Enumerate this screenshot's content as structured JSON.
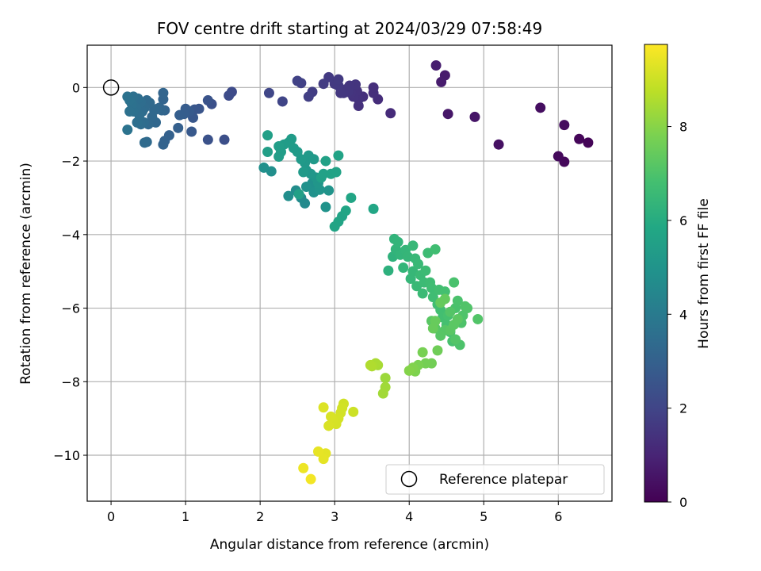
{
  "chart_data": {
    "type": "scatter",
    "title": "FOV centre drift starting at 2024/03/29 07:58:49",
    "xlabel": "Angular distance from reference (arcmin)",
    "ylabel": "Rotation from reference (arcmin)",
    "xlim": [
      -0.32,
      6.72
    ],
    "ylim": [
      -11.25,
      1.15
    ],
    "xticks": [
      0,
      1,
      2,
      3,
      4,
      5,
      6
    ],
    "yticks": [
      0,
      -2,
      -4,
      -6,
      -8,
      -10
    ],
    "xtick_labels": [
      "0",
      "1",
      "2",
      "3",
      "4",
      "5",
      "6"
    ],
    "ytick_labels": [
      "0",
      "−2",
      "−4",
      "−6",
      "−8",
      "−10"
    ],
    "grid": true,
    "colormap": "viridis",
    "colorbar": {
      "label": "Hours from first FF file",
      "range": [
        0,
        9.75
      ],
      "ticks": [
        0,
        2,
        4,
        6,
        8
      ],
      "tick_labels": [
        "0",
        "2",
        "4",
        "6",
        "8"
      ]
    },
    "legend": {
      "position": "lower-right",
      "entries": [
        {
          "label": "Reference platepar",
          "marker": "open-circle"
        }
      ]
    },
    "reference_point": {
      "x": 0,
      "y": 0
    },
    "series": [
      {
        "points": [
          [
            6.4,
            -1.5,
            0.1
          ],
          [
            6.28,
            -1.4,
            0.15
          ],
          [
            6.08,
            -2.02,
            0.2
          ],
          [
            6.0,
            -1.87,
            0.25
          ],
          [
            6.08,
            -1.02,
            0.3
          ],
          [
            5.76,
            -0.55,
            0.35
          ],
          [
            5.2,
            -1.55,
            0.45
          ],
          [
            4.88,
            -0.8,
            0.55
          ],
          [
            4.52,
            -0.72,
            0.6
          ],
          [
            4.48,
            0.33,
            0.7
          ],
          [
            4.43,
            0.15,
            0.75
          ],
          [
            4.36,
            0.6,
            0.8
          ],
          [
            3.75,
            -0.7,
            1.2
          ],
          [
            3.58,
            -0.32,
            1.25
          ],
          [
            3.52,
            -0.15,
            1.3
          ],
          [
            3.52,
            0.0,
            1.32
          ],
          [
            3.38,
            -0.25,
            1.35
          ],
          [
            3.32,
            -0.5,
            1.38
          ],
          [
            3.32,
            -0.32,
            1.4
          ],
          [
            3.3,
            -0.1,
            1.42
          ],
          [
            3.25,
            -0.25,
            1.44
          ],
          [
            3.22,
            -0.15,
            1.46
          ],
          [
            3.28,
            0.08,
            1.48
          ],
          [
            3.2,
            0.05,
            1.5
          ],
          [
            3.18,
            -0.12,
            1.52
          ],
          [
            3.15,
            -0.05,
            1.54
          ],
          [
            3.12,
            -0.15,
            1.56
          ],
          [
            3.08,
            -0.15,
            1.58
          ],
          [
            3.05,
            0.05,
            1.6
          ],
          [
            3.0,
            0.1,
            1.62
          ],
          [
            3.05,
            0.22,
            1.64
          ],
          [
            2.92,
            0.28,
            1.66
          ],
          [
            2.85,
            0.1,
            1.7
          ],
          [
            2.7,
            -0.12,
            1.75
          ],
          [
            2.65,
            -0.25,
            1.8
          ],
          [
            2.55,
            0.12,
            1.85
          ],
          [
            2.5,
            0.18,
            1.9
          ],
          [
            2.3,
            -0.38,
            2.0
          ],
          [
            2.12,
            -0.15,
            2.05
          ],
          [
            1.62,
            -0.12,
            2.2
          ],
          [
            1.58,
            -0.22,
            2.25
          ],
          [
            1.52,
            -1.42,
            2.35
          ],
          [
            1.35,
            -0.45,
            2.4
          ],
          [
            1.3,
            -1.42,
            2.45
          ],
          [
            1.3,
            -0.35,
            2.5
          ],
          [
            1.18,
            -0.58,
            2.55
          ],
          [
            1.12,
            -0.6,
            2.6
          ],
          [
            1.1,
            -0.82,
            2.65
          ],
          [
            1.08,
            -1.2,
            2.7
          ],
          [
            1.05,
            -0.65,
            2.75
          ],
          [
            1.0,
            -0.58,
            2.8
          ],
          [
            0.98,
            -0.72,
            2.85
          ],
          [
            0.92,
            -0.75,
            2.9
          ],
          [
            0.9,
            -1.1,
            2.95
          ],
          [
            0.78,
            -1.3,
            3.0
          ],
          [
            0.72,
            -1.45,
            3.05
          ],
          [
            0.7,
            -1.55,
            3.08
          ],
          [
            0.72,
            -0.62,
            3.1
          ],
          [
            0.7,
            -0.32,
            3.12
          ],
          [
            0.7,
            -0.15,
            3.14
          ],
          [
            0.68,
            -0.62,
            3.18
          ],
          [
            0.65,
            -0.55,
            3.2
          ],
          [
            0.62,
            -0.58,
            3.22
          ],
          [
            0.6,
            -0.95,
            3.24
          ],
          [
            0.58,
            -0.62,
            3.26
          ],
          [
            0.55,
            -0.8,
            3.28
          ],
          [
            0.52,
            -0.42,
            3.3
          ],
          [
            0.5,
            -1.0,
            3.32
          ],
          [
            0.48,
            -0.35,
            3.34
          ],
          [
            0.48,
            -1.48,
            3.36
          ],
          [
            0.45,
            -0.55,
            3.38
          ],
          [
            0.45,
            -1.5,
            3.4
          ],
          [
            0.44,
            -0.95,
            3.42
          ],
          [
            0.42,
            -0.65,
            3.44
          ],
          [
            0.4,
            -0.4,
            3.46
          ],
          [
            0.4,
            -1.0,
            3.48
          ],
          [
            0.38,
            -0.75,
            3.5
          ],
          [
            0.36,
            -0.3,
            3.52
          ],
          [
            0.35,
            -0.95,
            3.54
          ],
          [
            0.33,
            -0.55,
            3.56
          ],
          [
            0.3,
            -0.25,
            3.58
          ],
          [
            0.3,
            -0.65,
            3.6
          ],
          [
            0.28,
            -0.45,
            3.62
          ],
          [
            0.25,
            -0.65,
            3.64
          ],
          [
            0.25,
            -0.35,
            3.66
          ],
          [
            0.22,
            -0.25,
            3.68
          ],
          [
            0.22,
            -1.15,
            3.7
          ],
          [
            2.6,
            -3.15,
            4.6
          ],
          [
            2.55,
            -3.0,
            4.65
          ],
          [
            2.48,
            -2.8,
            4.7
          ],
          [
            2.38,
            -2.95,
            4.75
          ],
          [
            2.15,
            -2.28,
            4.8
          ],
          [
            2.05,
            -2.18,
            4.82
          ],
          [
            2.7,
            -2.6,
            4.85
          ],
          [
            2.62,
            -2.7,
            4.9
          ],
          [
            2.72,
            -2.85,
            4.92
          ],
          [
            2.88,
            -3.25,
            4.95
          ],
          [
            2.92,
            -2.8,
            5.0
          ],
          [
            2.8,
            -2.78,
            5.05
          ],
          [
            2.78,
            -2.6,
            5.08
          ],
          [
            2.75,
            -2.45,
            5.1
          ],
          [
            2.68,
            -2.35,
            5.12
          ],
          [
            2.62,
            -2.25,
            5.15
          ],
          [
            2.6,
            -2.05,
            5.18
          ],
          [
            2.65,
            -1.85,
            5.2
          ],
          [
            2.72,
            -1.95,
            5.22
          ],
          [
            2.58,
            -2.3,
            5.24
          ],
          [
            2.55,
            -1.95,
            5.26
          ],
          [
            2.5,
            -1.75,
            5.28
          ],
          [
            2.45,
            -1.65,
            5.3
          ],
          [
            2.42,
            -1.4,
            5.32
          ],
          [
            2.38,
            -1.5,
            5.34
          ],
          [
            2.32,
            -1.55,
            5.36
          ],
          [
            2.28,
            -1.75,
            5.38
          ],
          [
            2.25,
            -1.88,
            5.4
          ],
          [
            2.25,
            -1.6,
            5.42
          ],
          [
            2.1,
            -1.75,
            5.44
          ],
          [
            2.1,
            -1.3,
            5.46
          ],
          [
            2.52,
            -2.9,
            5.5
          ],
          [
            2.82,
            -2.45,
            5.52
          ],
          [
            2.85,
            -2.35,
            5.54
          ],
          [
            2.88,
            -2.0,
            5.56
          ],
          [
            2.95,
            -2.35,
            5.58
          ],
          [
            3.02,
            -2.3,
            5.6
          ],
          [
            3.05,
            -1.85,
            5.62
          ],
          [
            3.1,
            -3.5,
            5.65
          ],
          [
            3.05,
            -3.65,
            5.68
          ],
          [
            3.0,
            -3.78,
            5.7
          ],
          [
            3.15,
            -3.35,
            5.72
          ],
          [
            3.22,
            -3.0,
            5.74
          ],
          [
            3.52,
            -3.3,
            5.76
          ],
          [
            3.72,
            -4.98,
            6.2
          ],
          [
            3.78,
            -4.6,
            6.25
          ],
          [
            3.8,
            -4.12,
            6.3
          ],
          [
            3.82,
            -4.4,
            6.32
          ],
          [
            3.85,
            -4.2,
            6.34
          ],
          [
            3.88,
            -4.55,
            6.36
          ],
          [
            3.92,
            -4.9,
            6.38
          ],
          [
            3.95,
            -4.42,
            6.4
          ],
          [
            3.98,
            -4.6,
            6.42
          ],
          [
            4.02,
            -5.2,
            6.44
          ],
          [
            4.05,
            -5.0,
            6.46
          ],
          [
            4.05,
            -4.3,
            6.48
          ],
          [
            4.08,
            -4.65,
            6.5
          ],
          [
            4.1,
            -5.4,
            6.52
          ],
          [
            4.12,
            -4.8,
            6.54
          ],
          [
            4.15,
            -5.1,
            6.56
          ],
          [
            4.18,
            -5.6,
            6.58
          ],
          [
            4.2,
            -5.3,
            6.6
          ],
          [
            4.22,
            -4.98,
            6.62
          ],
          [
            4.25,
            -4.5,
            6.64
          ],
          [
            4.28,
            -5.3,
            6.66
          ],
          [
            4.3,
            -5.45,
            6.68
          ],
          [
            4.32,
            -5.7,
            6.7
          ],
          [
            4.35,
            -4.4,
            6.72
          ],
          [
            4.38,
            -5.9,
            6.74
          ],
          [
            4.4,
            -5.5,
            6.76
          ],
          [
            4.42,
            -6.05,
            6.78
          ],
          [
            4.45,
            -6.25,
            6.8
          ],
          [
            4.48,
            -5.55,
            6.82
          ],
          [
            4.5,
            -6.45,
            6.84
          ],
          [
            4.52,
            -6.2,
            6.86
          ],
          [
            4.55,
            -6.65,
            6.88
          ],
          [
            4.58,
            -6.9,
            6.9
          ],
          [
            4.6,
            -5.3,
            6.92
          ],
          [
            4.62,
            -6.0,
            6.94
          ],
          [
            4.65,
            -5.8,
            6.96
          ],
          [
            4.68,
            -7.0,
            6.98
          ],
          [
            4.7,
            -6.4,
            7.0
          ],
          [
            4.72,
            -6.2,
            7.02
          ],
          [
            4.75,
            -5.95,
            7.04
          ],
          [
            4.78,
            -6.0,
            7.06
          ],
          [
            4.92,
            -6.3,
            7.08
          ],
          [
            4.62,
            -6.85,
            7.1
          ],
          [
            4.55,
            -6.1,
            7.12
          ],
          [
            4.48,
            -6.6,
            7.14
          ],
          [
            4.42,
            -6.75,
            7.16
          ],
          [
            4.35,
            -6.55,
            7.18
          ],
          [
            4.3,
            -6.35,
            7.2
          ],
          [
            4.55,
            -6.6,
            7.22
          ],
          [
            4.6,
            -6.45,
            7.24
          ],
          [
            4.65,
            -6.3,
            7.26
          ],
          [
            4.48,
            -5.75,
            7.4
          ],
          [
            4.42,
            -5.85,
            7.42
          ],
          [
            4.35,
            -6.35,
            7.45
          ],
          [
            4.32,
            -6.55,
            7.48
          ],
          [
            4.38,
            -7.15,
            7.6
          ],
          [
            4.3,
            -7.5,
            7.65
          ],
          [
            4.22,
            -7.5,
            7.7
          ],
          [
            4.18,
            -7.2,
            7.75
          ],
          [
            4.12,
            -7.55,
            7.8
          ],
          [
            4.08,
            -7.72,
            7.85
          ],
          [
            4.05,
            -7.62,
            7.9
          ],
          [
            4.0,
            -7.7,
            7.95
          ],
          [
            3.68,
            -7.9,
            8.3
          ],
          [
            3.68,
            -8.15,
            8.35
          ],
          [
            3.65,
            -8.32,
            8.38
          ],
          [
            3.58,
            -7.55,
            8.45
          ],
          [
            3.55,
            -7.5,
            8.5
          ],
          [
            3.5,
            -7.58,
            8.55
          ],
          [
            3.48,
            -7.55,
            8.58
          ],
          [
            3.25,
            -8.82,
            9.0
          ],
          [
            3.12,
            -8.6,
            9.05
          ],
          [
            3.1,
            -8.72,
            9.08
          ],
          [
            3.08,
            -8.85,
            9.1
          ],
          [
            3.05,
            -9.0,
            9.12
          ],
          [
            3.02,
            -9.15,
            9.14
          ],
          [
            2.98,
            -9.05,
            9.16
          ],
          [
            2.95,
            -8.95,
            9.18
          ],
          [
            2.92,
            -9.2,
            9.2
          ],
          [
            2.85,
            -8.7,
            9.25
          ],
          [
            2.88,
            -9.95,
            9.35
          ],
          [
            2.85,
            -10.1,
            9.38
          ],
          [
            2.78,
            -9.9,
            9.42
          ],
          [
            2.58,
            -10.35,
            9.5
          ],
          [
            2.68,
            -10.65,
            9.6
          ]
        ]
      }
    ]
  }
}
